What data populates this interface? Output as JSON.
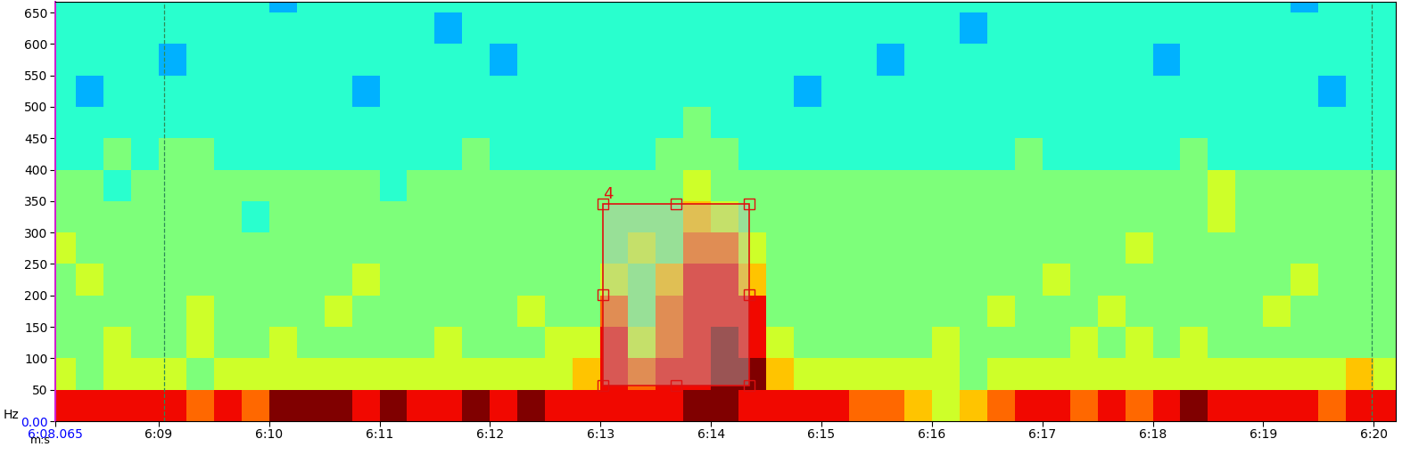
{
  "chart_data": {
    "type": "spectrogram",
    "xlabel": "m:s",
    "ylabel": "Hz",
    "xlim": [
      368.065,
      380.2
    ],
    "ylim": [
      0,
      667
    ],
    "xticks": [
      {
        "value": 368.065,
        "label": "6:08.065"
      },
      {
        "value": 369,
        "label": "6:09"
      },
      {
        "value": 370,
        "label": "6:10"
      },
      {
        "value": 371,
        "label": "6:11"
      },
      {
        "value": 372,
        "label": "6:12"
      },
      {
        "value": 373,
        "label": "6:13"
      },
      {
        "value": 374,
        "label": "6:14"
      },
      {
        "value": 375,
        "label": "6:15"
      },
      {
        "value": 376,
        "label": "6:16"
      },
      {
        "value": 377,
        "label": "6:17"
      },
      {
        "value": 378,
        "label": "6:18"
      },
      {
        "value": 379,
        "label": "6:19"
      },
      {
        "value": 380,
        "label": "6:20"
      }
    ],
    "yticks": [
      {
        "value": 0,
        "label": "0.00"
      },
      50,
      100,
      150,
      200,
      250,
      300,
      350,
      400,
      450,
      500,
      550,
      600,
      650
    ],
    "time_bins": [
      368.0,
      368.25,
      368.5,
      368.75,
      369.0,
      369.25,
      369.5,
      369.75,
      370.0,
      370.25,
      370.5,
      370.75,
      371.0,
      371.25,
      371.5,
      371.75,
      372.0,
      372.25,
      372.5,
      372.75,
      373.0,
      373.25,
      373.5,
      373.75,
      374.0,
      374.25,
      374.5,
      374.75,
      375.0,
      375.25,
      375.5,
      375.75,
      376.0,
      376.25,
      376.5,
      376.75,
      377.0,
      377.25,
      377.5,
      377.75,
      378.0,
      378.25,
      378.5,
      378.75,
      379.0,
      379.25,
      379.5,
      379.75,
      380.0,
      380.25
    ],
    "freq_bins": [
      0,
      50,
      100,
      150,
      200,
      250,
      300,
      350,
      400,
      450,
      500,
      550,
      600,
      650,
      700
    ],
    "color_range": [
      0,
      10
    ],
    "cells": [
      [
        9,
        9,
        9,
        9,
        9,
        8,
        9,
        8,
        10,
        10,
        10,
        9,
        10,
        9,
        9,
        10,
        9,
        10,
        9,
        9,
        9,
        9,
        9,
        10,
        10,
        9,
        9,
        9,
        9,
        8,
        8,
        7,
        6,
        7,
        8,
        9,
        9,
        8,
        9,
        8,
        9,
        10,
        9,
        9,
        9,
        9,
        8,
        9,
        9
      ],
      [
        6,
        5,
        6,
        6,
        6,
        5,
        6,
        6,
        6,
        6,
        6,
        6,
        6,
        6,
        6,
        6,
        6,
        6,
        6,
        7,
        9,
        8,
        9,
        9,
        10,
        10,
        7,
        6,
        6,
        6,
        6,
        6,
        6,
        5,
        6,
        6,
        6,
        6,
        6,
        6,
        6,
        6,
        6,
        6,
        6,
        6,
        6,
        7,
        6
      ],
      [
        5,
        5,
        6,
        5,
        5,
        6,
        5,
        5,
        6,
        5,
        5,
        5,
        5,
        5,
        6,
        5,
        5,
        5,
        6,
        6,
        9,
        6,
        8,
        9,
        10,
        9,
        6,
        5,
        5,
        5,
        5,
        5,
        6,
        5,
        5,
        5,
        5,
        6,
        5,
        6,
        5,
        6,
        5,
        5,
        5,
        5,
        5,
        5,
        5
      ],
      [
        5,
        5,
        5,
        5,
        5,
        6,
        5,
        5,
        5,
        5,
        6,
        5,
        5,
        5,
        5,
        5,
        5,
        6,
        5,
        5,
        8,
        5,
        8,
        9,
        9,
        9,
        5,
        5,
        5,
        5,
        5,
        5,
        5,
        5,
        6,
        5,
        5,
        5,
        6,
        5,
        5,
        5,
        5,
        5,
        6,
        5,
        5,
        5,
        5
      ],
      [
        5,
        6,
        5,
        5,
        5,
        5,
        5,
        5,
        5,
        5,
        5,
        6,
        5,
        5,
        5,
        5,
        5,
        5,
        5,
        5,
        6,
        5,
        7,
        9,
        9,
        7,
        5,
        5,
        5,
        5,
        5,
        5,
        5,
        5,
        5,
        5,
        6,
        5,
        5,
        5,
        5,
        5,
        5,
        5,
        5,
        6,
        5,
        5,
        5
      ],
      [
        6,
        5,
        5,
        5,
        5,
        5,
        5,
        5,
        5,
        5,
        5,
        5,
        5,
        5,
        5,
        5,
        5,
        5,
        5,
        5,
        5,
        6,
        5,
        8,
        8,
        6,
        5,
        5,
        5,
        5,
        5,
        5,
        5,
        5,
        5,
        5,
        5,
        5,
        5,
        6,
        5,
        5,
        5,
        5,
        5,
        5,
        5,
        5,
        5
      ],
      [
        5,
        5,
        5,
        5,
        5,
        5,
        5,
        4,
        5,
        5,
        5,
        5,
        5,
        5,
        5,
        5,
        5,
        5,
        5,
        5,
        5,
        5,
        5,
        7,
        6,
        5,
        5,
        5,
        5,
        5,
        5,
        5,
        5,
        5,
        5,
        5,
        5,
        5,
        5,
        5,
        5,
        5,
        6,
        5,
        5,
        5,
        5,
        5,
        5
      ],
      [
        5,
        5,
        4,
        5,
        5,
        5,
        5,
        5,
        5,
        5,
        5,
        5,
        4,
        5,
        5,
        5,
        5,
        5,
        5,
        5,
        5,
        5,
        5,
        6,
        5,
        5,
        5,
        5,
        5,
        5,
        5,
        5,
        5,
        5,
        5,
        5,
        5,
        5,
        5,
        5,
        5,
        5,
        6,
        5,
        5,
        5,
        5,
        5,
        5
      ],
      [
        4,
        4,
        5,
        4,
        5,
        5,
        4,
        4,
        4,
        4,
        4,
        4,
        4,
        4,
        4,
        5,
        4,
        4,
        4,
        4,
        4,
        4,
        5,
        5,
        5,
        4,
        4,
        4,
        4,
        4,
        4,
        4,
        4,
        4,
        4,
        5,
        4,
        4,
        4,
        4,
        4,
        5,
        4,
        4,
        4,
        4,
        4,
        4,
        4
      ],
      [
        4,
        4,
        4,
        4,
        4,
        4,
        4,
        4,
        4,
        4,
        4,
        4,
        4,
        4,
        4,
        4,
        4,
        4,
        4,
        4,
        4,
        4,
        4,
        5,
        4,
        4,
        4,
        4,
        4,
        4,
        4,
        4,
        4,
        4,
        4,
        4,
        4,
        4,
        4,
        4,
        4,
        4,
        4,
        4,
        4,
        4,
        4,
        4,
        4
      ],
      [
        4,
        3,
        4,
        4,
        4,
        4,
        4,
        4,
        4,
        4,
        4,
        3,
        4,
        4,
        4,
        4,
        4,
        4,
        4,
        4,
        4,
        4,
        4,
        4,
        4,
        4,
        4,
        3,
        4,
        4,
        4,
        4,
        4,
        4,
        4,
        4,
        4,
        4,
        4,
        4,
        4,
        4,
        4,
        4,
        4,
        4,
        3,
        4,
        4
      ],
      [
        4,
        4,
        4,
        4,
        3,
        4,
        4,
        4,
        4,
        4,
        4,
        4,
        4,
        4,
        4,
        4,
        3,
        4,
        4,
        4,
        4,
        4,
        4,
        4,
        4,
        4,
        4,
        4,
        4,
        4,
        3,
        4,
        4,
        4,
        4,
        4,
        4,
        4,
        4,
        4,
        3,
        4,
        4,
        4,
        4,
        4,
        4,
        4,
        4
      ],
      [
        4,
        4,
        4,
        4,
        4,
        4,
        4,
        4,
        4,
        4,
        4,
        4,
        4,
        4,
        3,
        4,
        4,
        4,
        4,
        4,
        4,
        4,
        4,
        4,
        4,
        4,
        4,
        4,
        4,
        4,
        4,
        4,
        4,
        3,
        4,
        4,
        4,
        4,
        4,
        4,
        4,
        4,
        4,
        4,
        4,
        4,
        4,
        4,
        4
      ],
      [
        4,
        4,
        4,
        4,
        4,
        4,
        4,
        4,
        3,
        4,
        4,
        4,
        4,
        4,
        4,
        4,
        4,
        4,
        4,
        4,
        4,
        4,
        4,
        4,
        4,
        4,
        4,
        4,
        4,
        4,
        4,
        4,
        4,
        4,
        4,
        4,
        4,
        4,
        4,
        4,
        4,
        4,
        4,
        4,
        4,
        3,
        4,
        4,
        4
      ]
    ],
    "vlines": [
      369.05,
      379.98
    ],
    "selection": {
      "label": "4",
      "x": [
        373.02,
        374.35
      ],
      "y": [
        57,
        345
      ]
    }
  }
}
